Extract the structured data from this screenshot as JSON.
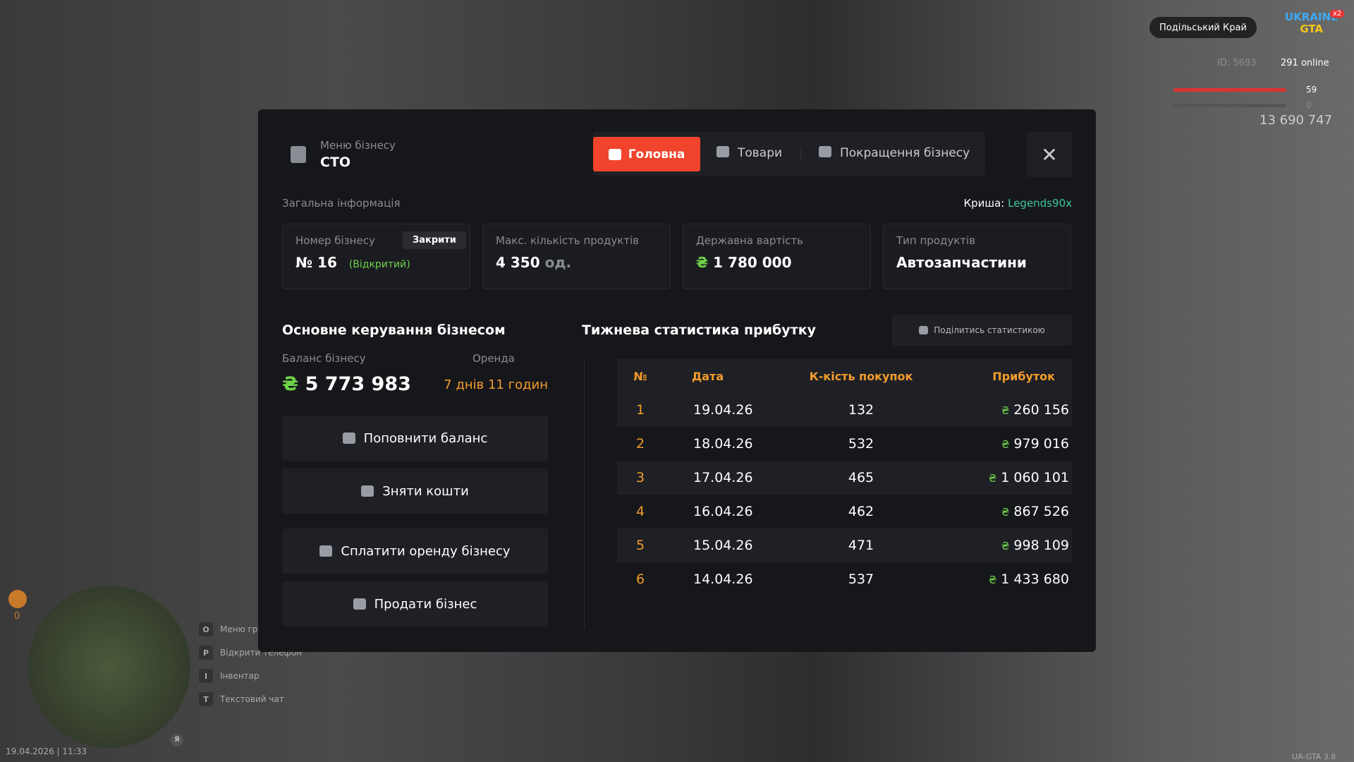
{
  "hud": {
    "server": "Подільський Край",
    "logo_top": "UKRAINE",
    "logo_bottom": "GTA",
    "logo_badge": "x2",
    "player_id": "ID: 5693",
    "online": "291 online",
    "health": "59",
    "armor": "0",
    "money": "13 690 747",
    "date": "19.04.2026 | 11:33",
    "version": "UA-GTA 3.8",
    "map_counter": "0",
    "map_badge": "Я",
    "hints": [
      {
        "key": "O",
        "label": "Меню гравця"
      },
      {
        "key": "P",
        "label": "Відкрити телефон"
      },
      {
        "key": "I",
        "label": "Інвентар"
      },
      {
        "key": "T",
        "label": "Текстовий чат"
      }
    ]
  },
  "modal": {
    "subtitle": "Меню бізнесу",
    "title": "СТО",
    "tabs": [
      "Головна",
      "Товари",
      "Покращення бізнесу"
    ],
    "section": "Загальна інформація",
    "owner_label": "Криша:",
    "owner": "Legends90x",
    "currency": "₴",
    "cards": [
      {
        "label": "Номер бізнесу",
        "value": "№ 16",
        "status": "(Відкритий)",
        "button": "Закрити"
      },
      {
        "label": "Макс. кількість продуктів",
        "value": "4 350",
        "unit": "од."
      },
      {
        "label": "Державна вартість",
        "value": "1 780 000"
      },
      {
        "label": "Тип продуктів",
        "value": "Автозапчастини"
      }
    ],
    "control": {
      "title": "Основне керування бізнесом",
      "balance_label": "Баланс бізнесу",
      "balance": "5 773 983",
      "rent_label": "Оренда",
      "rent": "7 днів 11 годин",
      "buttons": [
        "Поповнити баланс",
        "Зняти кошти",
        "Сплатити оренду бізнесу",
        "Продати бізнес"
      ]
    },
    "stats": {
      "title": "Тижнева статистика прибутку",
      "share": "Поділитись статистикою",
      "table": {
        "headers": [
          "№",
          "Дата",
          "К-кість покупок",
          "Прибуток"
        ],
        "rows": [
          [
            1,
            "19.04.26",
            132,
            "260 156"
          ],
          [
            2,
            "18.04.26",
            532,
            "979 016"
          ],
          [
            3,
            "17.04.26",
            465,
            "1 060 101"
          ],
          [
            4,
            "16.04.26",
            462,
            "867 526"
          ],
          [
            5,
            "15.04.26",
            471,
            "998 109"
          ],
          [
            6,
            "14.04.26",
            537,
            "1 433 680"
          ]
        ]
      }
    }
  }
}
